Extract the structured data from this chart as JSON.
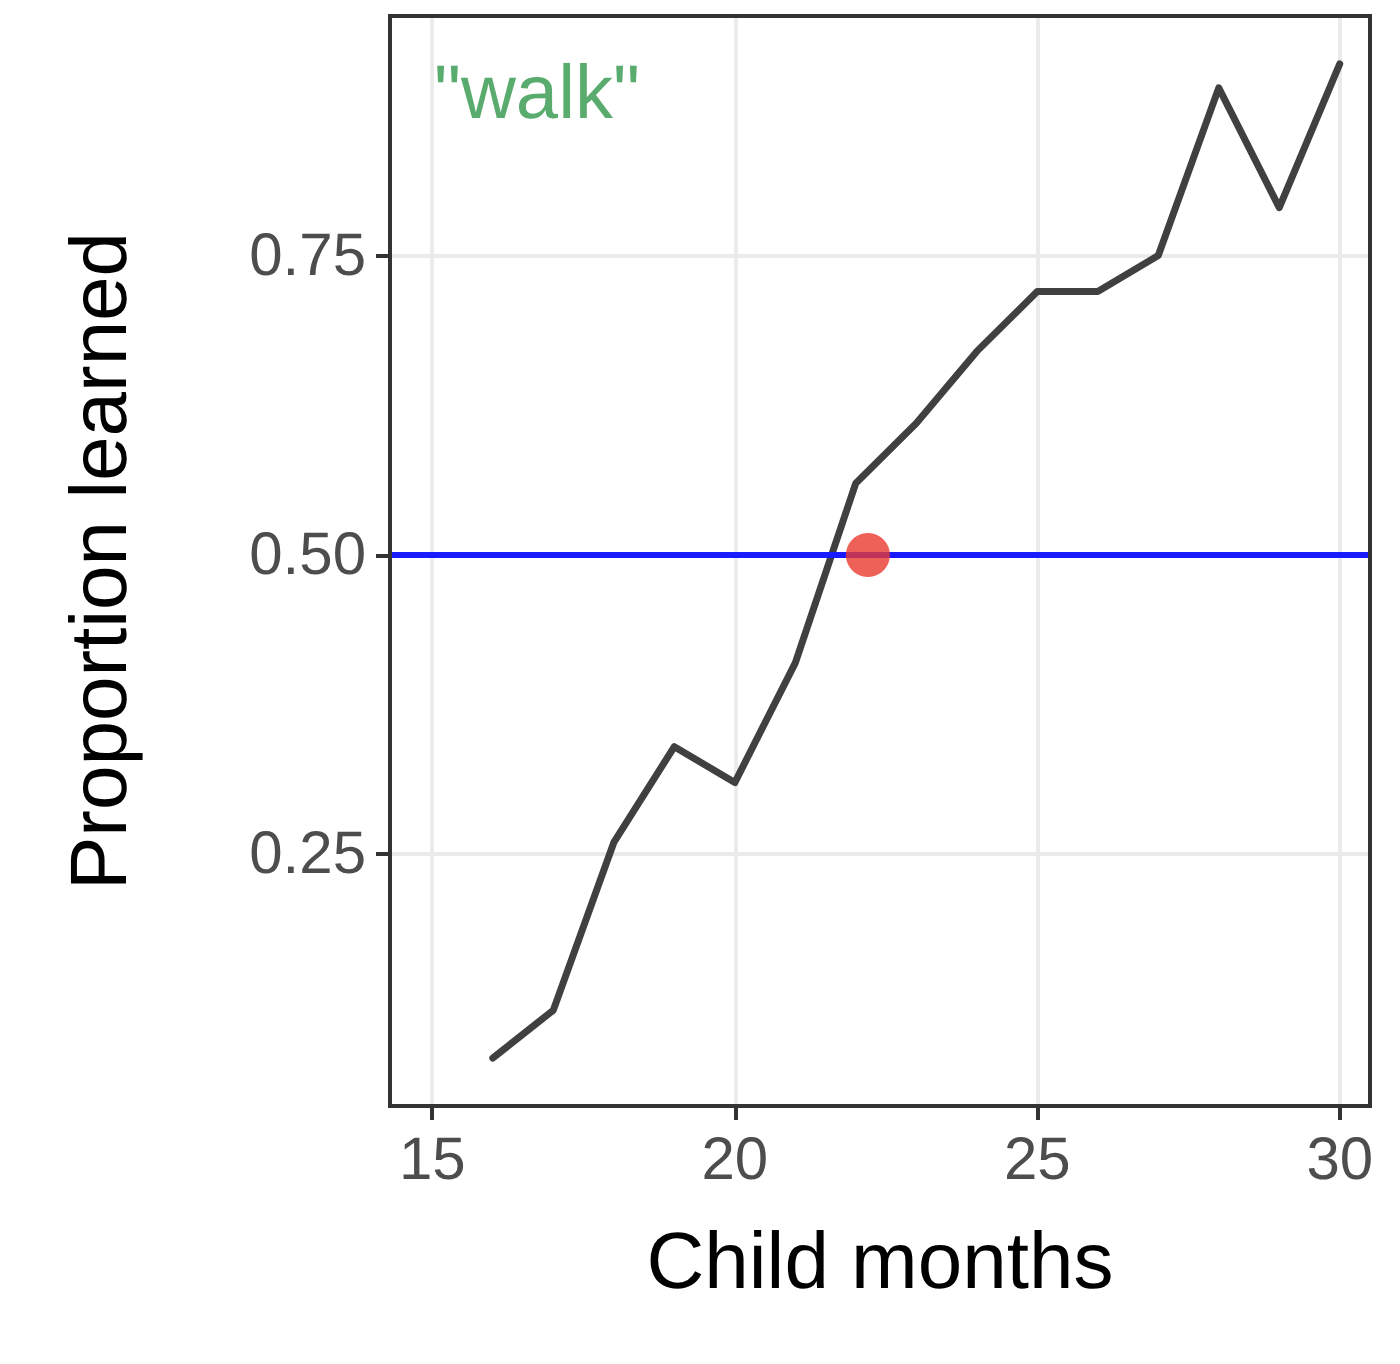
{
  "chart_data": {
    "type": "line",
    "xlabel": "Child months",
    "ylabel": "Proportion learned",
    "annotations": [
      "\"walk\""
    ],
    "x": [
      16,
      17,
      18,
      19,
      20,
      21,
      22,
      23,
      24,
      25,
      26,
      27,
      28,
      29,
      30
    ],
    "series": [
      {
        "color": "#404040",
        "marker": "none",
        "values": [
          0.08,
          0.12,
          0.26,
          0.34,
          0.31,
          0.41,
          0.56,
          0.61,
          0.67,
          0.72,
          0.72,
          0.75,
          0.89,
          0.79,
          0.91
        ]
      },
      {
        "type": "scatter",
        "marker": "circle",
        "color": "#e8392f",
        "x": [
          22.2
        ],
        "values": [
          0.5
        ]
      }
    ],
    "ref_lines": [
      {
        "axis": "y",
        "value": 0.5,
        "color": "#1a1aff"
      }
    ],
    "xlim": [
      14.3,
      30.5
    ],
    "ylim": [
      0.04,
      0.95
    ],
    "xticks": [
      15,
      20,
      25,
      30
    ],
    "yticks": [
      {
        "value": 0.25,
        "label": "0.25"
      },
      {
        "value": 0.5,
        "label": "0.50"
      },
      {
        "value": 0.75,
        "label": "0.75"
      }
    ],
    "grid": true,
    "line_style": "solid"
  }
}
